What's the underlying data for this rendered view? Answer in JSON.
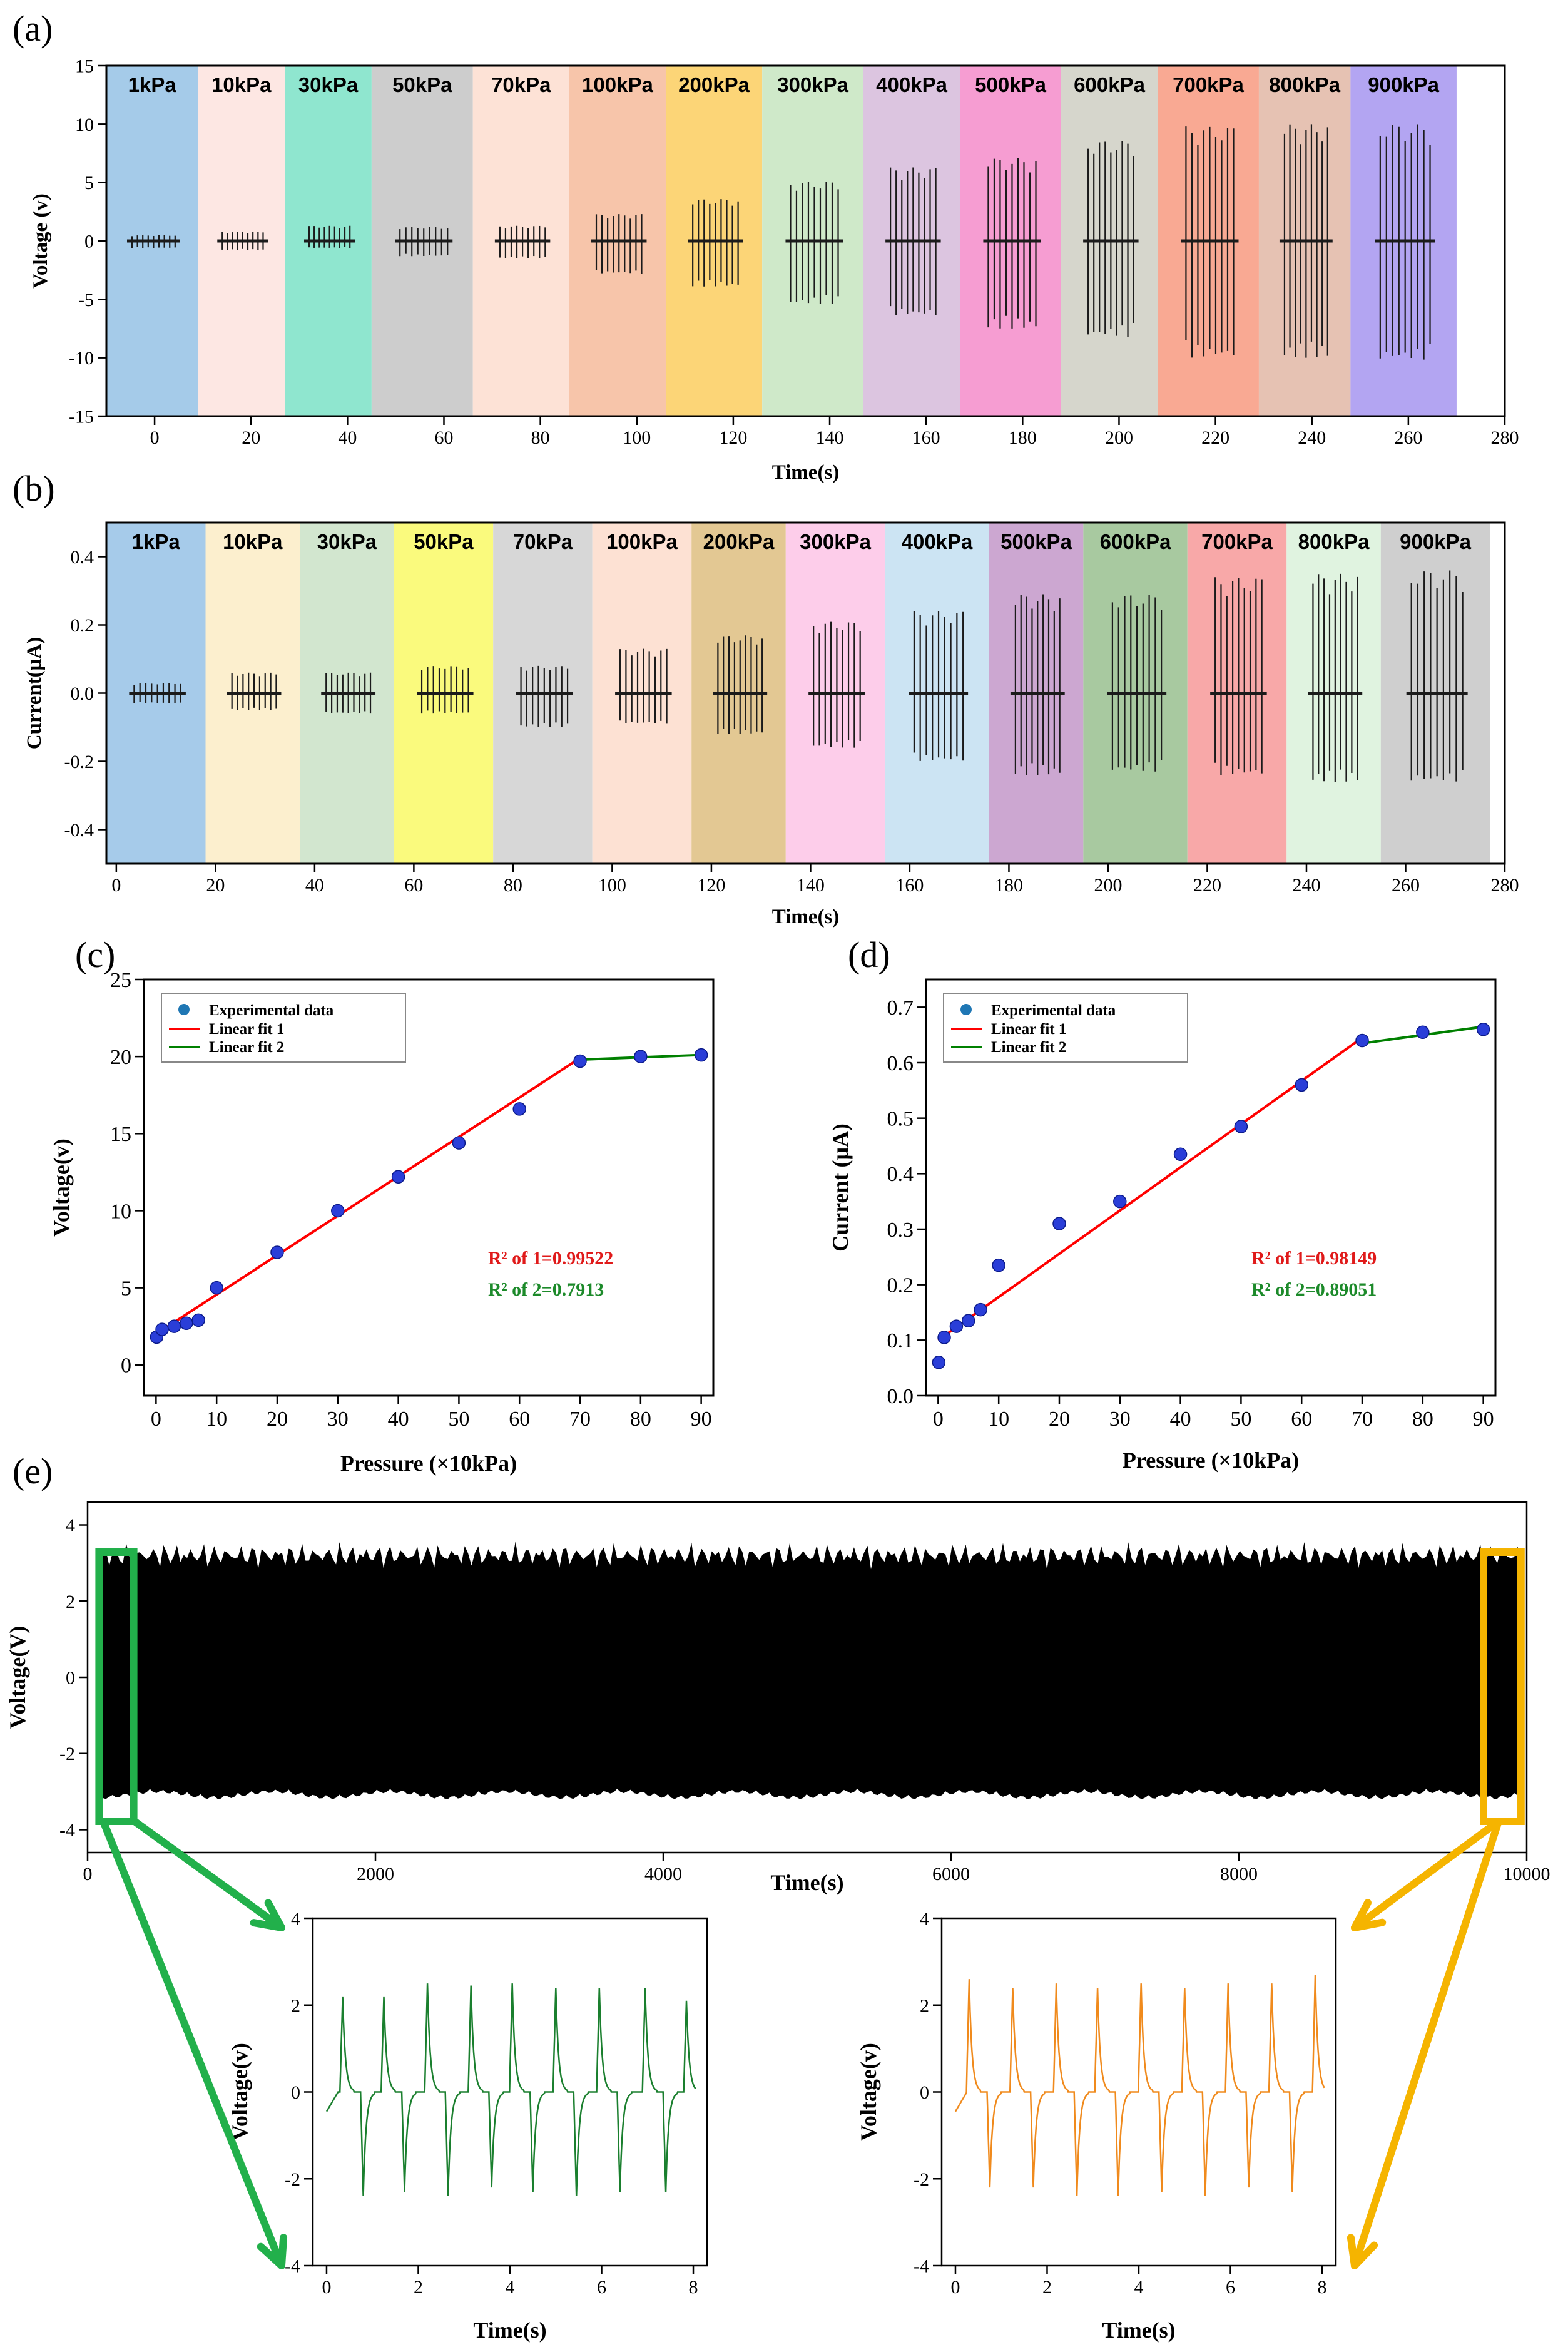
{
  "figure": {
    "panel_labels": {
      "a": "(a)",
      "b": "(b)",
      "c": "(c)",
      "d": "(d)",
      "e": "(e)"
    },
    "colors": {
      "green_arrow": "#22b04b",
      "orange_arrow": "#f5b400",
      "black": "#000000"
    }
  },
  "chart_data": [
    {
      "id": "a",
      "type": "bar",
      "title": "",
      "xlabel": "Time(s)",
      "ylabel": "Voltage (v)",
      "xlim": [
        -10,
        280
      ],
      "ylim": [
        -15,
        15
      ],
      "xticks": [
        "0",
        "20",
        "40",
        "60",
        "80",
        "100",
        "120",
        "140",
        "160",
        "180",
        "200",
        "220",
        "240",
        "260",
        "280"
      ],
      "yticks": [
        "-15",
        "-10",
        "-5",
        "0",
        "5",
        "10",
        "15"
      ],
      "categories": [
        "1kPa",
        "10kPa",
        "30kPa",
        "50kPa",
        "70kPa",
        "100kPa",
        "200kPa",
        "300kPa",
        "400kPa",
        "500kPa",
        "600kPa",
        "700kPa",
        "800kPa",
        "900kPa"
      ],
      "band_ranges": [
        [
          -10,
          9
        ],
        [
          9,
          27
        ],
        [
          27,
          45
        ],
        [
          45,
          66
        ],
        [
          66,
          86
        ],
        [
          86,
          106
        ],
        [
          106,
          126
        ],
        [
          126,
          147
        ],
        [
          147,
          167
        ],
        [
          167,
          188
        ],
        [
          188,
          208
        ],
        [
          208,
          229
        ],
        [
          229,
          248
        ],
        [
          248,
          270
        ]
      ],
      "band_colors": [
        "#a5cbe9",
        "#fde7e3",
        "#8fe6cf",
        "#cdcdcd",
        "#fde2d6",
        "#f7c5aa",
        "#fcd577",
        "#cfe9c9",
        "#dcc5e0",
        "#f69dd2",
        "#d6d6cc",
        "#f9a993",
        "#e6c2b3",
        "#b3a5f2"
      ],
      "series": [
        {
          "name": "Voltage",
          "pos": [
            0.5,
            0.8,
            1.3,
            1.2,
            1.3,
            2.3,
            3.6,
            5.1,
            6.3,
            7.1,
            8.6,
            9.8,
            10.0,
            10.0
          ],
          "neg": [
            -0.6,
            -0.8,
            -0.6,
            -1.3,
            -1.5,
            -2.8,
            -3.9,
            -5.4,
            -6.4,
            -7.5,
            -8.2,
            -10.0,
            -10.0,
            -10.2
          ]
        }
      ]
    },
    {
      "id": "b",
      "type": "bar",
      "title": "",
      "xlabel": "Time(s)",
      "ylabel": "Current(μA)",
      "xlim": [
        -2,
        280
      ],
      "ylim": [
        -0.5,
        0.5
      ],
      "xticks": [
        "0",
        "20",
        "40",
        "60",
        "80",
        "100",
        "120",
        "140",
        "160",
        "180",
        "200",
        "220",
        "240",
        "260",
        "280"
      ],
      "yticks": [
        "-0.4",
        "-0.2",
        "0.0",
        "0.2",
        "0.4"
      ],
      "categories": [
        "1kPa",
        "10kPa",
        "30kPa",
        "50kPa",
        "70kPa",
        "100kPa",
        "200kPa",
        "300kPa",
        "400kPa",
        "500kPa",
        "600kPa",
        "700kPa",
        "800kPa",
        "900kPa"
      ],
      "band_ranges": [
        [
          -2,
          18
        ],
        [
          18,
          37
        ],
        [
          37,
          56
        ],
        [
          56,
          76
        ],
        [
          76,
          96
        ],
        [
          96,
          116
        ],
        [
          116,
          135
        ],
        [
          135,
          155
        ],
        [
          155,
          176
        ],
        [
          176,
          195
        ],
        [
          195,
          216
        ],
        [
          216,
          236
        ],
        [
          236,
          255
        ],
        [
          255,
          277
        ]
      ],
      "band_colors": [
        "#a6cbea",
        "#fcefce",
        "#d2e6cf",
        "#fafa7d",
        "#d7d7d7",
        "#fde1d3",
        "#e3c893",
        "#fdcdea",
        "#cce4f3",
        "#cca7d1",
        "#a8c9a0",
        "#f8a8a8",
        "#e0f3e0",
        "#cfcfcf"
      ],
      "series": [
        {
          "name": "Current",
          "pos": [
            0.03,
            0.06,
            0.06,
            0.08,
            0.08,
            0.13,
            0.17,
            0.21,
            0.24,
            0.29,
            0.29,
            0.34,
            0.35,
            0.36
          ],
          "neg": [
            -0.03,
            -0.05,
            -0.06,
            -0.06,
            -0.1,
            -0.09,
            -0.12,
            -0.16,
            -0.2,
            -0.24,
            -0.23,
            -0.24,
            -0.26,
            -0.26
          ]
        }
      ]
    },
    {
      "id": "c",
      "type": "scatter",
      "title": "",
      "xlabel": "Pressure (×10kPa)",
      "ylabel": "Voltage(v)",
      "xlim": [
        -2,
        92
      ],
      "ylim": [
        -2,
        25
      ],
      "xticks": [
        "0",
        "10",
        "20",
        "30",
        "40",
        "50",
        "60",
        "70",
        "80",
        "90"
      ],
      "yticks": [
        "0",
        "5",
        "10",
        "15",
        "20",
        "25"
      ],
      "x": [
        0.1,
        1,
        3,
        5,
        7,
        10,
        20,
        30,
        40,
        50,
        60,
        70,
        80,
        90
      ],
      "y": [
        1.8,
        2.3,
        2.5,
        2.7,
        2.9,
        5.0,
        7.3,
        10.0,
        12.2,
        14.4,
        16.6,
        19.7,
        20.0,
        20.1
      ],
      "series": [
        {
          "name": "Experimental data",
          "color": "#1f77b4"
        },
        {
          "name": "Linear fit 1",
          "color": "#ff0000",
          "x": [
            0,
            70
          ],
          "y": [
            2.0,
            19.9
          ]
        },
        {
          "name": "Linear fit 2",
          "color": "#008000",
          "x": [
            70,
            90
          ],
          "y": [
            19.8,
            20.1
          ]
        }
      ],
      "annotations": [
        "R² of 1=0.99522",
        "R² of 2=0.7913"
      ]
    },
    {
      "id": "d",
      "type": "scatter",
      "title": "",
      "xlabel": "Pressure (×10kPa)",
      "ylabel": "Current (μA)",
      "xlim": [
        -2,
        92
      ],
      "ylim": [
        0,
        0.75
      ],
      "xticks": [
        "0",
        "10",
        "20",
        "30",
        "40",
        "50",
        "60",
        "70",
        "80",
        "90"
      ],
      "yticks": [
        "0.0",
        "0.1",
        "0.2",
        "0.3",
        "0.4",
        "0.5",
        "0.6",
        "0.7"
      ],
      "x": [
        0.1,
        1,
        3,
        5,
        7,
        10,
        20,
        30,
        40,
        50,
        60,
        70,
        80,
        90
      ],
      "y": [
        0.06,
        0.105,
        0.125,
        0.135,
        0.155,
        0.235,
        0.31,
        0.35,
        0.435,
        0.485,
        0.56,
        0.64,
        0.655,
        0.66
      ],
      "series": [
        {
          "name": "Experimental data",
          "color": "#1f77b4"
        },
        {
          "name": "Linear fit 1",
          "color": "#ff0000",
          "x": [
            0,
            70
          ],
          "y": [
            0.1,
            0.645
          ]
        },
        {
          "name": "Linear fit 2",
          "color": "#008000",
          "x": [
            70,
            90
          ],
          "y": [
            0.635,
            0.665
          ]
        }
      ],
      "annotations": [
        "R² of 1=0.98149",
        "R² of 2=0.89051"
      ]
    },
    {
      "id": "e",
      "type": "area",
      "title": "",
      "xlabel": "Time(s)",
      "ylabel": "Voltage(V)",
      "xlim": [
        0,
        10000
      ],
      "ylim": [
        -4.6,
        4.6
      ],
      "xticks": [
        "0",
        "2000",
        "4000",
        "6000",
        "8000",
        "10000"
      ],
      "yticks": [
        "-4",
        "-2",
        "0",
        "2",
        "4"
      ],
      "series": [
        {
          "name": "Voltage",
          "upper_approx": 3.2,
          "lower_approx": -3.0,
          "color": "#000000"
        }
      ],
      "highlight_ranges": [
        [
          80,
          320
        ],
        [
          9700,
          9960
        ]
      ]
    },
    {
      "id": "e-inset-start",
      "type": "line",
      "title": "",
      "xlabel": "Time(s)",
      "ylabel": "Voltage(v)",
      "xlim": [
        -0.3,
        8.3
      ],
      "ylim": [
        -4,
        4
      ],
      "xticks": [
        "0",
        "2",
        "4",
        "6",
        "8"
      ],
      "yticks": [
        "-4",
        "-2",
        "0",
        "2",
        "4"
      ],
      "color": "#1a7f2e",
      "pulse_times": [
        0.35,
        1.25,
        2.2,
        3.15,
        4.05,
        5.0,
        5.95,
        6.95,
        7.85
      ],
      "peaks": [
        2.2,
        2.2,
        2.5,
        2.45,
        2.5,
        2.4,
        2.4,
        2.4,
        2.1
      ],
      "troughs": [
        -2.4,
        -2.3,
        -2.4,
        -2.2,
        -2.3,
        -2.4,
        -2.3,
        -2.3,
        -2.3
      ]
    },
    {
      "id": "e-inset-end",
      "type": "line",
      "title": "",
      "xlabel": "Time(s)",
      "ylabel": "Voltage(v)",
      "xlim": [
        -0.3,
        8.3
      ],
      "ylim": [
        -4,
        4
      ],
      "xticks": [
        "0",
        "2",
        "4",
        "6",
        "8"
      ],
      "yticks": [
        "-4",
        "-2",
        "0",
        "2",
        "4"
      ],
      "color": "#f08a1c",
      "pulse_times": [
        0.3,
        1.25,
        2.2,
        3.1,
        4.05,
        5.0,
        5.95,
        6.9,
        7.85
      ],
      "peaks": [
        2.6,
        2.4,
        2.5,
        2.4,
        2.5,
        2.4,
        2.5,
        2.5,
        2.7
      ],
      "troughs": [
        -2.2,
        -2.2,
        -2.4,
        -2.4,
        -2.3,
        -2.4,
        -2.2,
        -2.3,
        -2.5
      ]
    }
  ]
}
